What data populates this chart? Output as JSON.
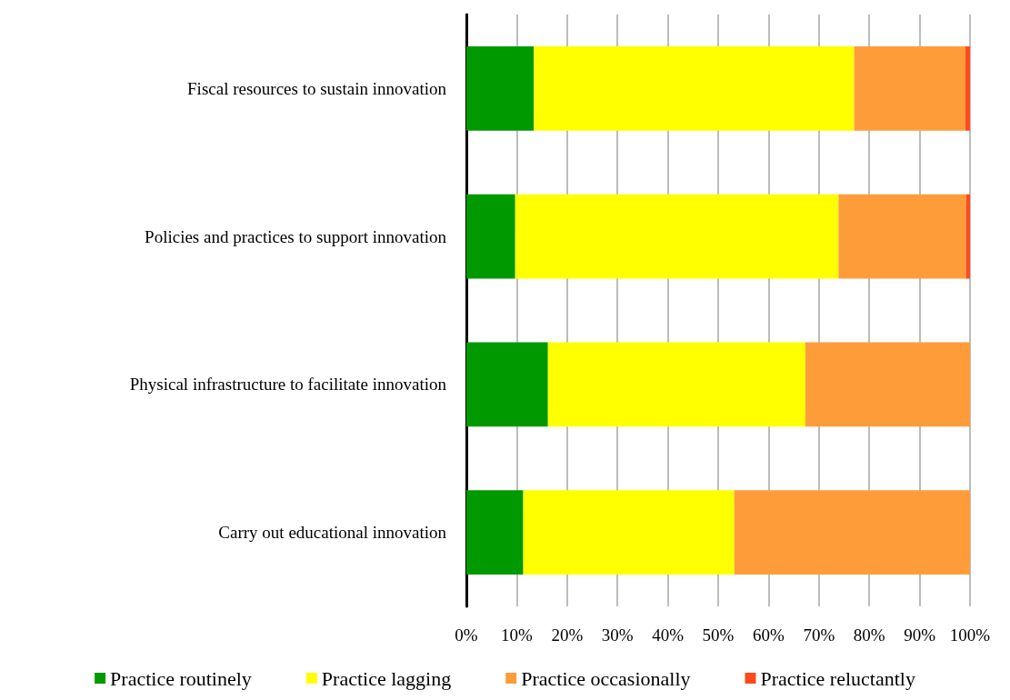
{
  "chart_data": {
    "type": "bar",
    "orientation": "horizontal",
    "stacked": true,
    "categories": [
      "Fiscal resources to sustain innovation",
      "Policies and practices to support innovation",
      "Physical infrastructure to facilitate innovation",
      "Carry out educational innovation"
    ],
    "series": [
      {
        "name": "Practice routinely",
        "color": "#009900",
        "values": [
          13.4,
          9.7,
          16.2,
          11.3
        ]
      },
      {
        "name": "Practice lagging",
        "color": "#ffff00",
        "values": [
          63.6,
          64.2,
          51.1,
          41.9
        ]
      },
      {
        "name": "Practice occasionally",
        "color": "#ff9c3a",
        "values": [
          22.1,
          25.3,
          32.7,
          46.8
        ]
      },
      {
        "name": "Practice reluctantly",
        "color": "#ff4a1c",
        "values": [
          0.9,
          0.8,
          0,
          0
        ]
      }
    ],
    "xlim": [
      0,
      100
    ],
    "xticks": [
      {
        "value": 0,
        "label": "0%"
      },
      {
        "value": 10,
        "label": "10%"
      },
      {
        "value": 20,
        "label": "20%"
      },
      {
        "value": 30,
        "label": "30%"
      },
      {
        "value": 40,
        "label": "40%"
      },
      {
        "value": 50,
        "label": "50%"
      },
      {
        "value": 60,
        "label": "60%"
      },
      {
        "value": 70,
        "label": "70%"
      },
      {
        "value": 80,
        "label": "80%"
      },
      {
        "value": 90,
        "label": "90%"
      },
      {
        "value": 100,
        "label": "100%"
      }
    ],
    "grid": "x",
    "legend": "bottom"
  }
}
